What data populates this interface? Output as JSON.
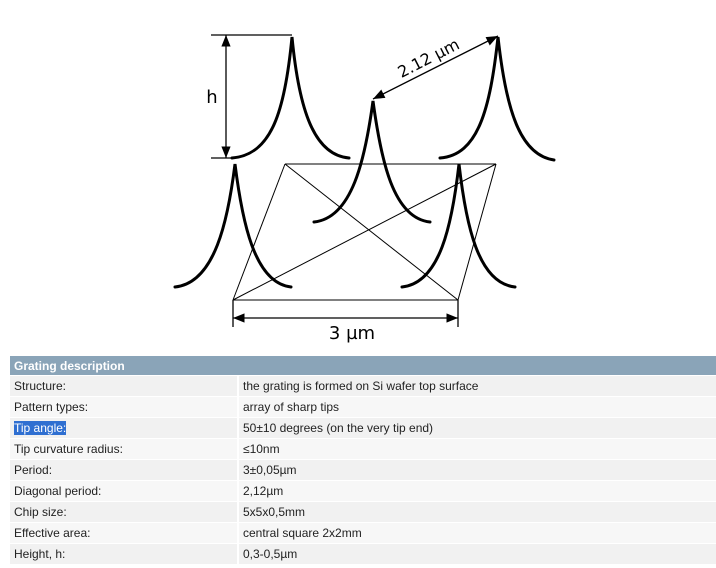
{
  "diagram": {
    "height_label": "h",
    "diagonal_label": "2.12 µm",
    "period_label": "3 µm"
  },
  "table": {
    "header": "Grating description",
    "rows": [
      {
        "key": "Structure:",
        "value": "the grating is formed on Si wafer top surface"
      },
      {
        "key": "Pattern types:",
        "value": "array of sharp tips"
      },
      {
        "key": "Tip angle:",
        "value": "50±10 degrees (on the very tip end)",
        "selected": true
      },
      {
        "key": "Tip curvature radius:",
        "value": "≤10nm"
      },
      {
        "key": "Period:",
        "value": "3±0,05µm"
      },
      {
        "key": "Diagonal period:",
        "value": "2,12µm"
      },
      {
        "key": "Chip size:",
        "value": "5x5x0,5mm"
      },
      {
        "key": "Effective area:",
        "value": "central square 2x2mm"
      },
      {
        "key": "Height, h:",
        "value": "0,3-0,5µm"
      }
    ]
  }
}
